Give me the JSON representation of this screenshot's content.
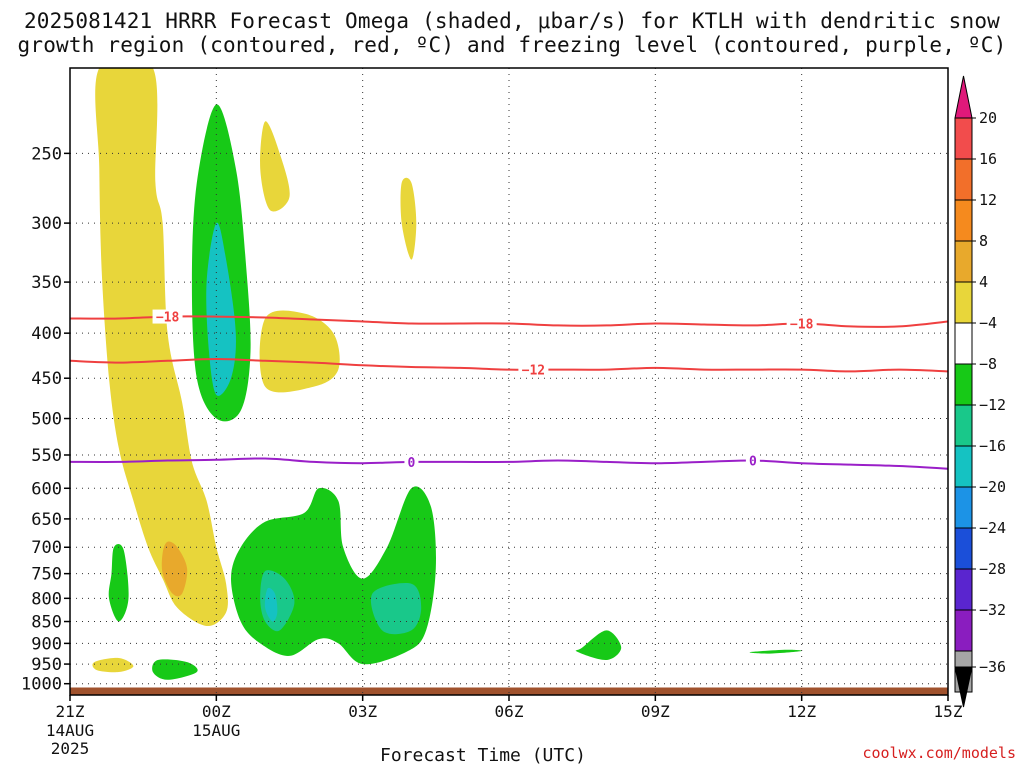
{
  "title_line1": "2025081421 HRRR Forecast Omega (shaded, μbar/s) for KTLH with dendritic snow",
  "title_line2": "growth region (contoured, red, ºC) and freezing level (contoured, purple, ºC)",
  "x_axis_title": "Forecast Time (UTC)",
  "credit": "coolwx.com/models",
  "chart_data": {
    "type": "heatmap",
    "title": "2025081421 HRRR Forecast Omega (shaded, μbar/s) for KTLH with dendritic snow growth region (contoured, red, ºC) and freezing level (contoured, purple, ºC)",
    "xlabel": "Forecast Time (UTC)",
    "ylabel": "",
    "x_range_hours": [
      0,
      18
    ],
    "y_scale": "log-pressure (hPa)",
    "y_range_hpa": [
      200,
      1030
    ],
    "x_ticks": [
      {
        "hour": 0,
        "label": "21Z",
        "sub1": "14AUG",
        "sub2": "2025"
      },
      {
        "hour": 3,
        "label": "00Z",
        "sub1": "15AUG",
        "sub2": ""
      },
      {
        "hour": 6,
        "label": "03Z",
        "sub1": "",
        "sub2": ""
      },
      {
        "hour": 9,
        "label": "06Z",
        "sub1": "",
        "sub2": ""
      },
      {
        "hour": 12,
        "label": "09Z",
        "sub1": "",
        "sub2": ""
      },
      {
        "hour": 15,
        "label": "12Z",
        "sub1": "",
        "sub2": ""
      },
      {
        "hour": 18,
        "label": "15Z",
        "sub1": "",
        "sub2": ""
      }
    ],
    "y_ticks": [
      250,
      300,
      350,
      400,
      450,
      500,
      550,
      600,
      650,
      700,
      750,
      800,
      850,
      900,
      950,
      1000
    ],
    "grid": true,
    "colorbar": {
      "labels": [
        "20",
        "16",
        "12",
        "8",
        "4",
        "-4",
        "-8",
        "-12",
        "-16",
        "-20",
        "-24",
        "-28",
        "-32",
        "-36"
      ],
      "colors": [
        "#f24c4c",
        "#f26f2a",
        "#f58a1e",
        "#e8a92c",
        "#e8d63a",
        "#ffffff",
        "#17c917",
        "#19c88a",
        "#15c2c2",
        "#1c93e6",
        "#1b4fd9",
        "#5a25cf",
        "#8a1dbf",
        "#a6a6a6"
      ],
      "top_arrow_color": "#e0197a",
      "bottom_arrow_color": "#000000"
    },
    "shaded_regions": [
      {
        "name": "omega-pos-4-8-main",
        "class": "4 to 8",
        "color": "#e8d63a",
        "points": [
          [
            0.6,
            200
          ],
          [
            1.7,
            200
          ],
          [
            1.75,
            270
          ],
          [
            1.9,
            300
          ],
          [
            2.0,
            400
          ],
          [
            2.3,
            480
          ],
          [
            2.5,
            560
          ],
          [
            2.8,
            620
          ],
          [
            3.0,
            700
          ],
          [
            3.2,
            770
          ],
          [
            3.2,
            830
          ],
          [
            2.8,
            860
          ],
          [
            2.2,
            820
          ],
          [
            1.9,
            760
          ],
          [
            1.6,
            700
          ],
          [
            1.3,
            620
          ],
          [
            1.0,
            540
          ],
          [
            0.8,
            450
          ],
          [
            0.65,
            340
          ],
          [
            0.6,
            260
          ]
        ]
      },
      {
        "name": "omega-pos-4-8-upper-a",
        "class": "4 to 8",
        "color": "#e8d63a",
        "points": [
          [
            4.0,
            230
          ],
          [
            4.3,
            250
          ],
          [
            4.5,
            280
          ],
          [
            4.1,
            290
          ],
          [
            3.9,
            260
          ]
        ]
      },
      {
        "name": "omega-pos-4-8-upper-b",
        "class": "4 to 8",
        "color": "#e8d63a",
        "points": [
          [
            6.8,
            270
          ],
          [
            7.0,
            270
          ],
          [
            7.1,
            300
          ],
          [
            7.0,
            330
          ],
          [
            6.8,
            300
          ]
        ]
      },
      {
        "name": "omega-pos-4-8-mid",
        "class": "4 to 8",
        "color": "#e8d63a",
        "points": [
          [
            4.0,
            385
          ],
          [
            4.8,
            380
          ],
          [
            5.4,
            400
          ],
          [
            5.5,
            440
          ],
          [
            5.0,
            460
          ],
          [
            4.0,
            460
          ]
        ]
      },
      {
        "name": "omega-pos-4-8-low",
        "class": "4 to 8",
        "color": "#e8d63a",
        "points": [
          [
            0.5,
            945
          ],
          [
            1.0,
            935
          ],
          [
            1.3,
            955
          ],
          [
            1.0,
            970
          ],
          [
            0.55,
            965
          ]
        ]
      },
      {
        "name": "omega-pos-8-12",
        "class": "8 to 12",
        "color": "#e8a92c",
        "points": [
          [
            2.0,
            690
          ],
          [
            2.2,
            700
          ],
          [
            2.4,
            740
          ],
          [
            2.3,
            790
          ],
          [
            2.1,
            790
          ],
          [
            1.9,
            750
          ],
          [
            1.9,
            710
          ]
        ]
      },
      {
        "name": "omega-neg-4-8-upper",
        "class": "-4 to -8",
        "color": "#17c917",
        "points": [
          [
            3.0,
            220
          ],
          [
            3.4,
            260
          ],
          [
            3.6,
            330
          ],
          [
            3.7,
            420
          ],
          [
            3.5,
            490
          ],
          [
            3.0,
            500
          ],
          [
            2.6,
            450
          ],
          [
            2.5,
            350
          ],
          [
            2.6,
            270
          ]
        ]
      },
      {
        "name": "omega-neg-4-8-lower",
        "class": "-4 to -8",
        "color": "#17c917",
        "points": [
          [
            3.5,
            700
          ],
          [
            4.0,
            655
          ],
          [
            4.8,
            640
          ],
          [
            5.1,
            600
          ],
          [
            5.5,
            620
          ],
          [
            5.6,
            700
          ],
          [
            6.0,
            760
          ],
          [
            6.5,
            700
          ],
          [
            7.0,
            600
          ],
          [
            7.4,
            630
          ],
          [
            7.5,
            740
          ],
          [
            7.3,
            870
          ],
          [
            6.9,
            920
          ],
          [
            6.0,
            950
          ],
          [
            5.5,
            900
          ],
          [
            5.1,
            890
          ],
          [
            4.5,
            930
          ],
          [
            3.9,
            900
          ],
          [
            3.5,
            850
          ],
          [
            3.3,
            760
          ]
        ]
      },
      {
        "name": "omega-neg-4-8-small-a",
        "class": "-4 to -8",
        "color": "#17c917",
        "points": [
          [
            0.9,
            700
          ],
          [
            1.1,
            705
          ],
          [
            1.2,
            800
          ],
          [
            1.0,
            850
          ],
          [
            0.8,
            800
          ],
          [
            0.85,
            750
          ]
        ]
      },
      {
        "name": "omega-neg-4-8-small-b",
        "class": "-4 to -8",
        "color": "#17c917",
        "points": [
          [
            1.8,
            940
          ],
          [
            2.4,
            945
          ],
          [
            2.6,
            970
          ],
          [
            2.0,
            990
          ],
          [
            1.7,
            970
          ]
        ]
      },
      {
        "name": "omega-neg-4-8-small-c",
        "class": "-4 to -8",
        "color": "#17c917",
        "points": [
          [
            10.5,
            910
          ],
          [
            11.0,
            870
          ],
          [
            11.3,
            910
          ],
          [
            11.0,
            940
          ],
          [
            10.4,
            920
          ]
        ]
      },
      {
        "name": "omega-neg-4-8-small-d",
        "class": "-4 to -8",
        "color": "#17c917",
        "points": [
          [
            14.0,
            920
          ],
          [
            14.7,
            915
          ],
          [
            15.0,
            918
          ],
          [
            14.4,
            924
          ],
          [
            14.0,
            923
          ]
        ]
      },
      {
        "name": "omega-neg-8-12-a",
        "class": "-8 to -12",
        "color": "#19c88a",
        "points": [
          [
            4.0,
            745
          ],
          [
            4.4,
            760
          ],
          [
            4.6,
            810
          ],
          [
            4.3,
            870
          ],
          [
            4.0,
            850
          ],
          [
            3.9,
            800
          ]
        ]
      },
      {
        "name": "omega-neg-8-12-b",
        "class": "-8 to -12",
        "color": "#19c88a",
        "points": [
          [
            6.2,
            790
          ],
          [
            7.0,
            770
          ],
          [
            7.2,
            820
          ],
          [
            7.0,
            870
          ],
          [
            6.4,
            870
          ]
        ]
      },
      {
        "name": "omega-neg-12-16-upper",
        "class": "-12 to -16",
        "color": "#15c2c2",
        "points": [
          [
            3.0,
            300
          ],
          [
            3.2,
            330
          ],
          [
            3.4,
            400
          ],
          [
            3.3,
            450
          ],
          [
            3.0,
            470
          ],
          [
            2.85,
            420
          ],
          [
            2.8,
            350
          ]
        ]
      },
      {
        "name": "omega-neg-12-16-lower",
        "class": "-12 to -16",
        "color": "#15c2c2",
        "points": [
          [
            4.05,
            780
          ],
          [
            4.2,
            790
          ],
          [
            4.25,
            830
          ],
          [
            4.15,
            850
          ],
          [
            4.0,
            820
          ]
        ]
      }
    ],
    "contours": [
      {
        "name": "-18",
        "value": -18,
        "color": "#ef4040",
        "label_positions": [
          2.0,
          15.0
        ],
        "points": [
          [
            0,
            385
          ],
          [
            1,
            385
          ],
          [
            2,
            383
          ],
          [
            3,
            383
          ],
          [
            4,
            384
          ],
          [
            5,
            386
          ],
          [
            6,
            388
          ],
          [
            7,
            390
          ],
          [
            8,
            390
          ],
          [
            9,
            390
          ],
          [
            10,
            392
          ],
          [
            11,
            392
          ],
          [
            12,
            390
          ],
          [
            13,
            391
          ],
          [
            14,
            392
          ],
          [
            15,
            390
          ],
          [
            16,
            393
          ],
          [
            17,
            393
          ],
          [
            18,
            388
          ]
        ]
      },
      {
        "name": "-12",
        "value": -12,
        "color": "#ef4040",
        "label_positions": [
          9.5
        ],
        "points": [
          [
            0,
            430
          ],
          [
            1,
            432
          ],
          [
            2,
            430
          ],
          [
            3,
            428
          ],
          [
            4,
            430
          ],
          [
            5,
            432
          ],
          [
            6,
            435
          ],
          [
            7,
            437
          ],
          [
            8,
            438
          ],
          [
            9,
            440
          ],
          [
            10,
            440
          ],
          [
            11,
            440
          ],
          [
            12,
            438
          ],
          [
            13,
            440
          ],
          [
            14,
            440
          ],
          [
            15,
            440
          ],
          [
            16,
            442
          ],
          [
            17,
            440
          ],
          [
            18,
            442
          ]
        ]
      },
      {
        "name": "0",
        "value": 0,
        "color": "#9a1fc8",
        "label_positions": [
          7.0,
          14.0
        ],
        "points": [
          [
            0,
            560
          ],
          [
            1,
            560
          ],
          [
            2,
            558
          ],
          [
            3,
            557
          ],
          [
            4,
            555
          ],
          [
            5,
            560
          ],
          [
            6,
            562
          ],
          [
            7,
            560
          ],
          [
            8,
            560
          ],
          [
            9,
            560
          ],
          [
            10,
            558
          ],
          [
            11,
            560
          ],
          [
            12,
            562
          ],
          [
            13,
            560
          ],
          [
            14,
            558
          ],
          [
            15,
            562
          ],
          [
            16,
            564
          ],
          [
            17,
            566
          ],
          [
            18,
            570
          ]
        ]
      }
    ],
    "ground_pressure_hpa": 1010
  }
}
